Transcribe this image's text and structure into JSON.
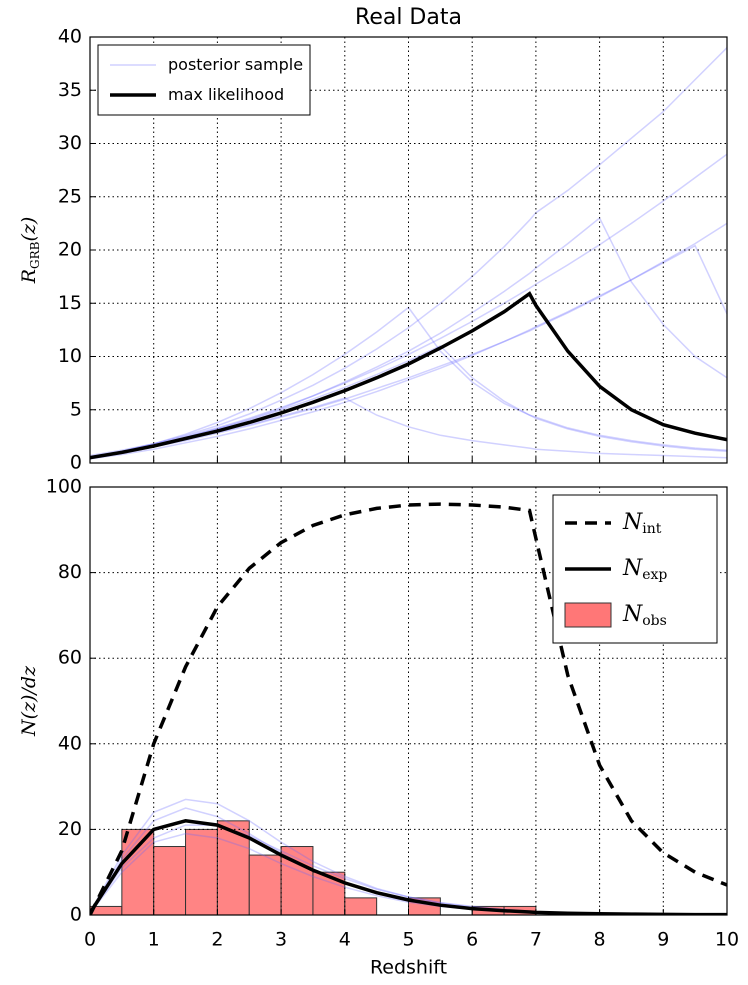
{
  "chart_data": [
    {
      "type": "line",
      "title": "Real Data",
      "ylabel": "R",
      "ylabel_sub": "GRB",
      "ylabel_suffix": "(z)",
      "x": [
        0,
        0.5,
        1,
        1.5,
        2,
        2.5,
        3,
        3.5,
        4,
        4.5,
        5,
        5.5,
        6,
        6.5,
        6.9,
        7,
        7.5,
        8,
        8.5,
        9,
        9.5,
        10
      ],
      "xlim": [
        0,
        10
      ],
      "xticks": [
        0,
        1,
        2,
        3,
        4,
        5,
        6,
        7,
        8,
        9,
        10
      ],
      "show_xticklabels": false,
      "ylim": [
        0,
        40
      ],
      "yticks": [
        0,
        5,
        10,
        15,
        20,
        25,
        30,
        35,
        40
      ],
      "grid": true,
      "legend": "upper left",
      "series": [
        {
          "name": "posterior sample",
          "color": "#6666ff",
          "samples": [
            [
              0.5,
              1.1,
              1.8,
              2.6,
              3.5,
              4.6,
              5.9,
              7.3,
              8.9,
              10.7,
              12.7,
              15.0,
              17.5,
              20.3,
              22.8,
              23.5,
              25.6,
              28.0,
              30.5,
              33.0,
              36.0,
              39.0
            ],
            [
              0.6,
              1.1,
              1.7,
              2.4,
              3.2,
              4.0,
              5.0,
              6.0,
              7.1,
              8.3,
              9.6,
              11.0,
              8.0,
              5.8,
              4.5,
              4.2,
              3.2,
              2.5,
              2.0,
              1.6,
              1.3,
              1.1
            ],
            [
              0.4,
              0.9,
              1.5,
              2.1,
              2.8,
              3.5,
              4.3,
              5.1,
              6.0,
              7.0,
              8.0,
              9.1,
              10.2,
              11.4,
              12.4,
              12.7,
              14.1,
              15.6,
              17.2,
              18.9,
              20.6,
              22.5
            ],
            [
              0.5,
              1.0,
              1.6,
              2.2,
              2.9,
              3.6,
              4.4,
              5.2,
              6.1,
              4.5,
              3.4,
              2.6,
              2.1,
              1.7,
              1.4,
              1.3,
              1.1,
              0.9,
              0.8,
              0.7,
              0.6,
              0.5
            ],
            [
              0.5,
              1.0,
              1.6,
              2.4,
              3.2,
              4.1,
              5.1,
              6.3,
              7.6,
              9.0,
              10.5,
              12.2,
              14.1,
              16.1,
              17.8,
              18.3,
              20.6,
              23.0,
              17.0,
              13.0,
              10.0,
              8.0
            ],
            [
              0.7,
              1.2,
              1.8,
              2.5,
              3.3,
              4.2,
              5.2,
              6.3,
              7.5,
              8.8,
              10.2,
              11.7,
              13.3,
              15.0,
              16.4,
              16.8,
              18.6,
              20.5,
              22.5,
              24.6,
              26.8,
              29.0
            ],
            [
              0.5,
              1.1,
              1.8,
              2.7,
              3.8,
              5.1,
              6.6,
              8.3,
              10.2,
              12.3,
              14.6,
              10.5,
              7.6,
              5.6,
              4.5,
              4.3,
              3.3,
              2.6,
              2.1,
              1.7,
              1.4,
              1.2
            ],
            [
              0.4,
              0.8,
              1.3,
              1.9,
              2.5,
              3.2,
              4.0,
              4.8,
              5.7,
              6.7,
              7.8,
              8.9,
              10.1,
              11.4,
              12.5,
              12.8,
              14.2,
              15.7,
              17.2,
              18.8,
              20.4,
              14.0
            ]
          ]
        },
        {
          "name": "max likelihood",
          "color": "#000000",
          "values": [
            0.5,
            1.0,
            1.6,
            2.3,
            3.0,
            3.8,
            4.7,
            5.7,
            6.8,
            8.0,
            9.3,
            10.8,
            12.4,
            14.2,
            15.9,
            14.8,
            10.5,
            7.2,
            5.0,
            3.6,
            2.8,
            2.2
          ]
        }
      ]
    },
    {
      "type": "histogram",
      "xlabel": "Redshift",
      "ylabel": "N(z)/dz",
      "x": [
        0,
        0.5,
        1,
        1.5,
        2,
        2.5,
        3,
        3.5,
        4,
        4.5,
        5,
        5.5,
        6,
        6.5,
        6.9,
        7,
        7.5,
        8,
        8.5,
        9,
        9.5,
        10
      ],
      "xlim": [
        0,
        10
      ],
      "xticks": [
        0,
        1,
        2,
        3,
        4,
        5,
        6,
        7,
        8,
        9,
        10
      ],
      "show_xticklabels": true,
      "ylim": [
        0,
        100
      ],
      "yticks": [
        0,
        20,
        40,
        60,
        80,
        100
      ],
      "grid": true,
      "legend": "upper right",
      "histogram": {
        "name": "N",
        "name_sub": "obs",
        "color": "#ff7777",
        "bins": [
          0,
          0.5,
          1,
          1.5,
          2,
          2.5,
          3,
          3.5,
          4,
          4.5,
          5,
          5.5,
          6,
          6.5,
          7
        ],
        "counts": [
          2,
          20,
          16,
          20,
          22,
          14,
          16,
          10,
          4,
          0,
          4,
          0,
          2,
          2
        ]
      },
      "series": [
        {
          "color": "#6666ff",
          "samples": [
            [
              0.6,
              14,
              24,
              27,
              26,
              22,
              17,
              12.5,
              9,
              6.2,
              4.2,
              2.8,
              1.8,
              1.2,
              0.8,
              0.7,
              0.5,
              0.35,
              0.25,
              0.18,
              0.12,
              0.1
            ],
            [
              0.4,
              10,
              17,
              19,
              18,
              15.5,
              12,
              9,
              6.5,
              4.5,
              3,
              2,
              1.3,
              0.9,
              0.6,
              0.5,
              0.35,
              0.25,
              0.18,
              0.12,
              0.1,
              0.08
            ],
            [
              0.5,
              13,
              22,
              25,
              23,
              19,
              14.5,
              10.5,
              7.5,
              5,
              3.4,
              2.2,
              1.4,
              0.9,
              0.65,
              0.55,
              0.4,
              0.3,
              0.2,
              0.15,
              0.1,
              0.08
            ],
            [
              0.4,
              11,
              18,
              21,
              21,
              18.5,
              15,
              11.5,
              8.5,
              6,
              4.2,
              2.9,
              2,
              1.3,
              0.9,
              0.8,
              0.55,
              0.4,
              0.3,
              0.2,
              0.15,
              0.12
            ]
          ]
        },
        {
          "name": "N",
          "name_sub": "int",
          "color": "#000000",
          "dash": true,
          "values": [
            0,
            15,
            40,
            58,
            72,
            81,
            87,
            91,
            93.5,
            95,
            95.8,
            96,
            95.8,
            95.3,
            94.5,
            88,
            56,
            35,
            22,
            14.5,
            10,
            7
          ]
        },
        {
          "name": "N",
          "name_sub": "exp",
          "color": "#000000",
          "values": [
            0.5,
            12,
            20,
            22,
            21,
            18,
            14,
            10.5,
            7.5,
            5.2,
            3.5,
            2.3,
            1.5,
            1.0,
            0.7,
            0.6,
            0.4,
            0.3,
            0.2,
            0.15,
            0.1,
            0.1
          ]
        }
      ]
    }
  ]
}
